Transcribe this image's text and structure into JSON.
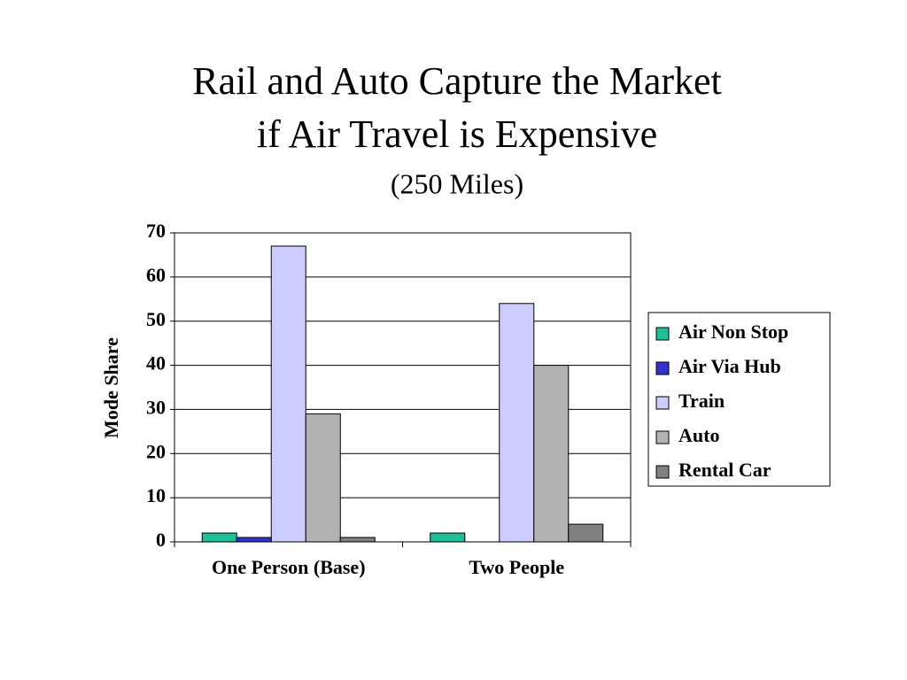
{
  "chart_data": {
    "type": "bar",
    "title": [
      "Rail and Auto Capture the Market",
      "if Air Travel is Expensive"
    ],
    "subtitle": "(250 Miles)",
    "y_label": "Mode Share",
    "categories": [
      "One Person (Base)",
      "Two People"
    ],
    "series": [
      {
        "name": "Air Non Stop",
        "color": "#1fbf99",
        "values": [
          2,
          2
        ]
      },
      {
        "name": "Air Via Hub",
        "color": "#3333cc",
        "values": [
          1,
          0
        ]
      },
      {
        "name": "Train",
        "color": "#ccccff",
        "values": [
          67,
          54
        ]
      },
      {
        "name": "Auto",
        "color": "#b2b2b2",
        "values": [
          29,
          40
        ]
      },
      {
        "name": "Rental Car",
        "color": "#808080",
        "values": [
          1,
          4
        ]
      }
    ],
    "ylim": [
      0,
      70
    ],
    "yticks": [
      0,
      10,
      20,
      30,
      40,
      50,
      60,
      70
    ],
    "grid": true,
    "legend": "right"
  }
}
